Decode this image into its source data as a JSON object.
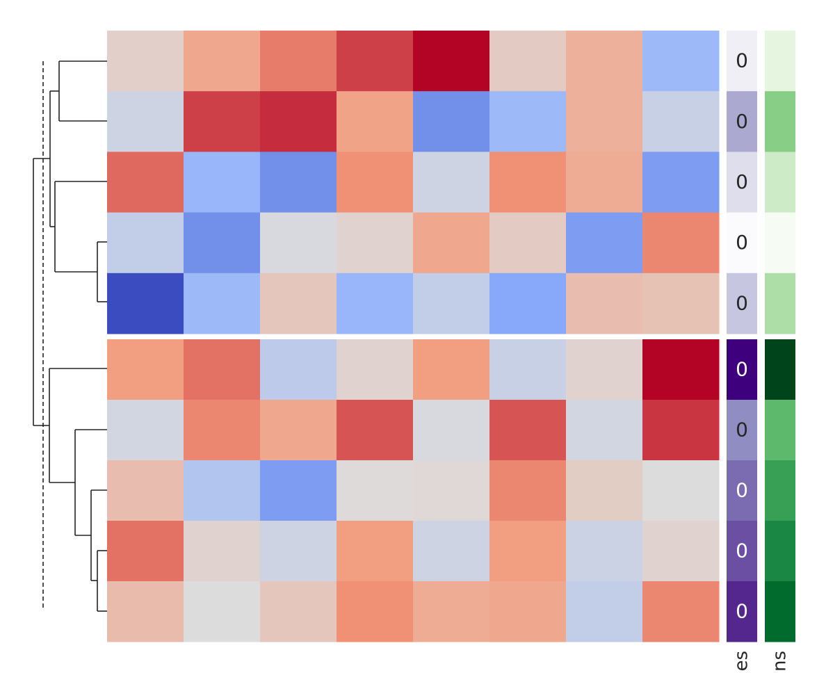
{
  "chart_data": {
    "type": "heatmap",
    "zlim": [
      -3,
      3
    ],
    "colormap": [
      "#3b4cc0",
      "#8db0fe",
      "#dddcdc",
      "#f49a7b",
      "#b40426"
    ],
    "values": [
      [
        0.3,
        1.2,
        1.8,
        2.4,
        3,
        0.4,
        1.0,
        -1.2
      ],
      [
        -0.3,
        2.4,
        2.6,
        1.3,
        -2.0,
        -1.2,
        1.0,
        -0.4
      ],
      [
        2.0,
        -1.3,
        -2.0,
        1.6,
        -0.3,
        1.6,
        1.1,
        -1.8
      ],
      [
        -0.5,
        -2.0,
        -0.1,
        0.2,
        1.2,
        0.4,
        -1.8,
        1.7
      ],
      [
        -3,
        -1.2,
        0.5,
        -1.3,
        -0.5,
        -1.6,
        0.7,
        0.6
      ],
      [
        1.4,
        1.9,
        -0.6,
        0.2,
        1.4,
        -0.4,
        0.2,
        3
      ],
      [
        -0.2,
        1.7,
        1.2,
        2.2,
        -0.1,
        2.2,
        -0.2,
        2.5
      ],
      [
        0.7,
        -0.8,
        -1.8,
        0.05,
        0.1,
        1.7,
        0.35,
        0
      ],
      [
        1.9,
        0.2,
        -0.3,
        1.4,
        -0.3,
        1.4,
        -0.35,
        0.2
      ],
      [
        0.75,
        0,
        0.5,
        1.6,
        1.1,
        1.2,
        -0.5,
        1.7
      ]
    ],
    "row_annotations": [
      {
        "label": "es",
        "colors": [
          "#efeff5",
          "#aba9cf",
          "#dedeec",
          "#fbfafd",
          "#c6c6e1",
          "#3f007d",
          "#908dc2",
          "#7b6cb2",
          "#6a4fa3",
          "#54278f"
        ],
        "texts": [
          "0",
          "0",
          "0",
          "0",
          "0",
          "0",
          "0",
          "0",
          "0",
          "0"
        ]
      },
      {
        "label": "ns",
        "colors": [
          "#e5f5e0",
          "#88ce86",
          "#cdebc6",
          "#f6fbf4",
          "#addea7",
          "#00441b",
          "#5db96b",
          "#37a055",
          "#1b8744",
          "#006b2c"
        ]
      }
    ]
  }
}
